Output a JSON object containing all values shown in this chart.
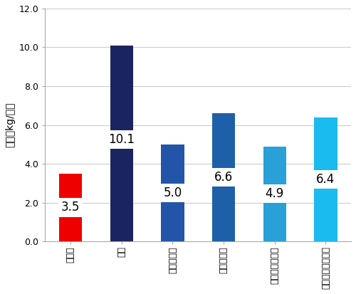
{
  "categories": [
    "開発品",
    "銃板",
    "アルミ合金",
    "チタン合金",
    "ポリプロピレン",
    "ポリカーボネート"
  ],
  "categories_vertical": [
    "開発品",
    "銃板",
    "アルミ合金",
    "チタン合金",
    "ポリプロピレン",
    "ポリカーボネート"
  ],
  "values": [
    3.5,
    10.1,
    5.0,
    6.6,
    4.9,
    6.4
  ],
  "bar_colors": [
    "#ee0000",
    "#1a2460",
    "#2255aa",
    "#1e5faa",
    "#29a0d8",
    "#1abbee"
  ],
  "label_values": [
    "3.5",
    "10.1",
    "5.0",
    "6.6",
    "4.9",
    "6.4"
  ],
  "label_y_fractions": [
    0.5,
    0.52,
    0.5,
    0.5,
    0.5,
    0.5
  ],
  "ylabel": "重量（kg/㎡）",
  "ylim": [
    0,
    12.0
  ],
  "yticks": [
    0.0,
    2.0,
    4.0,
    6.0,
    8.0,
    10.0,
    12.0
  ],
  "background_color": "#ffffff",
  "grid_color": "#cccccc",
  "label_bg_color": "#ffffff",
  "label_text_color": "#000000",
  "label_fontsize": 12,
  "ylabel_fontsize": 10,
  "tick_fontsize": 9,
  "bar_width": 0.45
}
